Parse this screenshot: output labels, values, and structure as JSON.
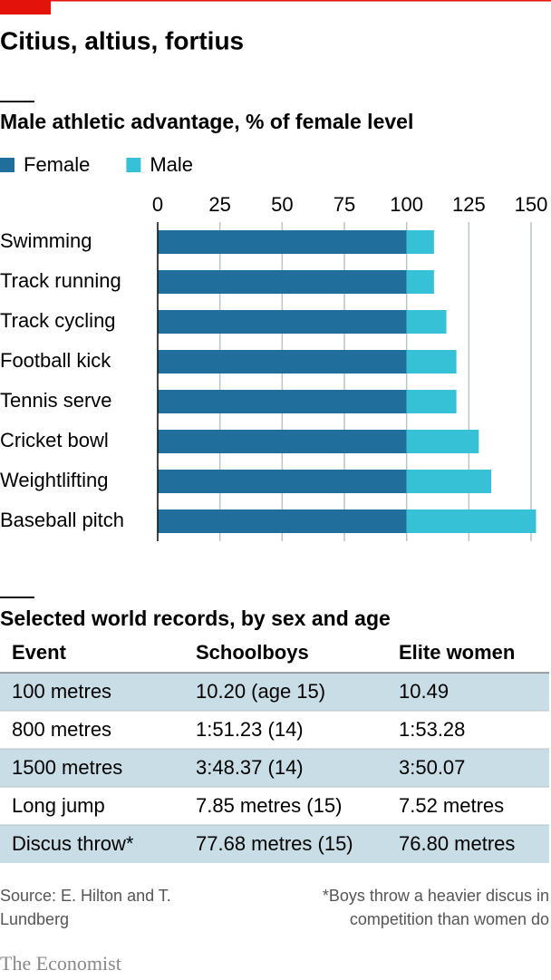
{
  "header": {
    "title": "Citius, altius, fortius"
  },
  "chart_data": {
    "type": "stacked-bar-horizontal",
    "title": "Male athletic advantage, % of female level",
    "categories": [
      "Swimming",
      "Track running",
      "Track cycling",
      "Football kick",
      "Tennis serve",
      "Cricket bowl",
      "Weightlifting",
      "Baseball pitch"
    ],
    "series": [
      {
        "name": "Female",
        "color": "#1f6e9c",
        "values": [
          100,
          100,
          100,
          100,
          100,
          100,
          100,
          100
        ]
      },
      {
        "name": "Male",
        "color": "#36c1d6",
        "values": [
          11,
          11,
          16,
          20,
          20,
          29,
          34,
          52
        ]
      }
    ],
    "xlim": [
      0,
      150
    ],
    "xticks": [
      0,
      25,
      50,
      75,
      100,
      125,
      150
    ],
    "grid": true,
    "legend": "top-left"
  },
  "table": {
    "title": "Selected world records, by sex and age",
    "columns": [
      "Event",
      "Schoolboys",
      "Elite women"
    ],
    "rows": [
      [
        "100 metres",
        "10.20 (age 15)",
        "10.49"
      ],
      [
        "800 metres",
        "1:51.23 (14)",
        "1:53.28"
      ],
      [
        "1500 metres",
        "3:48.37 (14)",
        "3:50.07"
      ],
      [
        "Long jump",
        "7.85 metres (15)",
        "7.52 metres"
      ],
      [
        "Discus throw*",
        "77.68 metres (15)",
        "76.80 metres"
      ]
    ]
  },
  "footer": {
    "source": "Source: E. Hilton and T. Lundberg",
    "note": "*Boys throw a heavier discus in competition than women do",
    "brand": "The Economist"
  }
}
